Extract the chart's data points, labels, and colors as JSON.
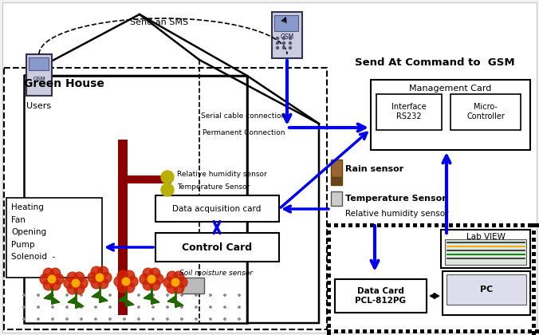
{
  "bg_color": "#f2f2f2",
  "blue": "#0000ee",
  "dark_red": "#8B0000",
  "black": "#000000",
  "white": "#ffffff",
  "yellow_green": "#b8b800",
  "gray_light": "#cccccc",
  "brown": "#8B6914",
  "greenhouse_label": "Green House",
  "gsm_title": "Send At Command to  GSM",
  "sms_label": "Send an SMS",
  "users_label": "Users",
  "serial_label": "Serial cable connection",
  "perm_label": "Permanent Connection",
  "mgmt_label": "Management Card",
  "interface_label": "Interface\nRS232",
  "micro_label": "Micro-\nController",
  "rh_sensor_label": "Relative humidity sensor",
  "temp_sensor_label": "Temperature Sensor",
  "rain_label": "Rain sensor",
  "temp_out_label": "Temperature Sensor",
  "rh_out_label": "Relative humidity sensor",
  "data_acq_label": "Data acquisition card",
  "control_label": "Control Card",
  "soil_label": "Soil moisture sensor",
  "heating_label": "Heating\nFan\nOpening\nPump\nSolenoid  -",
  "labview_label": "Lab VIEW",
  "datacard_label": "Data Card\nPCL-812PG",
  "pc_label": "PC"
}
